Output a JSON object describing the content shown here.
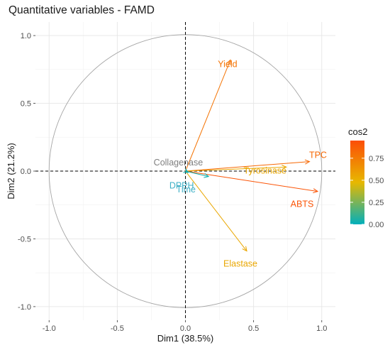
{
  "title": "Quantitative variables - FAMD",
  "chart_data": {
    "type": "scatter",
    "subtype": "correlation-circle",
    "title": "Quantitative variables - FAMD",
    "xlabel": "Dim1 (38.5%)",
    "ylabel": "Dim2 (21.2%)",
    "xlim": [
      -1.1,
      1.1
    ],
    "ylim": [
      -1.1,
      1.1
    ],
    "xticks": [
      -1.0,
      -0.5,
      0.0,
      0.5,
      1.0
    ],
    "yticks": [
      -1.0,
      -0.5,
      0.0,
      0.5,
      1.0
    ],
    "xtick_labels": [
      "-1.0",
      "-0.5",
      "0.0",
      "0.5",
      "1.0"
    ],
    "ytick_labels": [
      "-1.0",
      "-0.5",
      "0.0",
      "0.5",
      "1.0"
    ],
    "grid": true,
    "reference_lines": "dashed lines at x=0 and y=0",
    "unit_circle": true,
    "color_variable": "cos2",
    "colorbar": {
      "title": "cos2",
      "ticks": [
        0.0,
        0.25,
        0.5,
        0.75
      ],
      "tick_labels": [
        "0.00",
        "0.25",
        "0.50",
        "0.75"
      ],
      "range": [
        0.0,
        0.95
      ],
      "colors": [
        "#00AFBB",
        "#E7B800",
        "#FC4E07"
      ],
      "position": "right"
    },
    "variables": [
      {
        "name": "Yield",
        "x": 0.33,
        "y": 0.82,
        "cos2": 0.78
      },
      {
        "name": "TPC",
        "x": 0.91,
        "y": 0.07,
        "cos2": 0.83
      },
      {
        "name": "Tyrosinase",
        "x": 0.74,
        "y": 0.03,
        "cos2": 0.55
      },
      {
        "name": "ABTS",
        "x": 0.97,
        "y": -0.15,
        "cos2": 0.92
      },
      {
        "name": "Elastase",
        "x": 0.45,
        "y": -0.59,
        "cos2": 0.55
      },
      {
        "name": "Collagenase",
        "x": 0.01,
        "y": 0.01,
        "cos2": 0.0
      },
      {
        "name": "DPPH",
        "x": 0.17,
        "y": -0.04,
        "cos2": 0.03
      },
      {
        "name": "Time",
        "x": 0.02,
        "y": -0.01,
        "cos2": 0.0
      }
    ]
  }
}
